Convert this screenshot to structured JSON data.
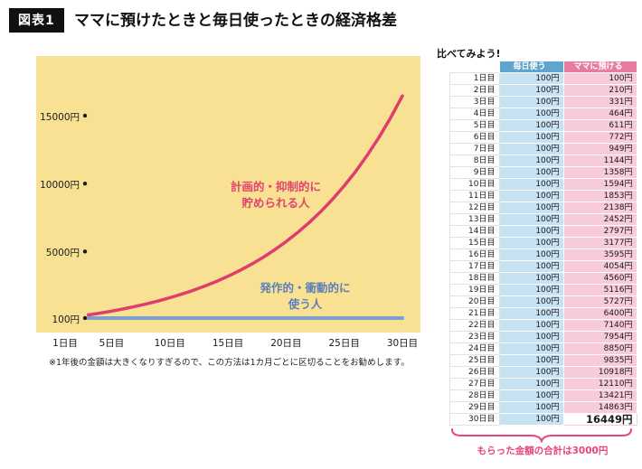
{
  "figure_label": "図表1",
  "title": "ママに預けたときと毎日使ったときの経済格差",
  "note": "※1年後の金額は大きくなりすぎるので、この方法は1カ月ごとに区切ることをお勧めします。",
  "colors": {
    "plot_bg": "#F9E194",
    "saver_line": "#DF3E6C",
    "spender_line": "#7C9FCB",
    "header_blue": "#5FA5CE",
    "header_pink": "#E87C9F",
    "cell_blue": "#C7E3F3",
    "cell_pink": "#F7CBDA",
    "footer_pink": "#E8457A",
    "tick_dot": "#1a1a1a"
  },
  "chart_data": {
    "type": "line",
    "title": "ママに預けたときと毎日使ったときの経済格差",
    "x": [
      1,
      2,
      3,
      4,
      5,
      6,
      7,
      8,
      9,
      10,
      11,
      12,
      13,
      14,
      15,
      16,
      17,
      18,
      19,
      20,
      21,
      22,
      23,
      24,
      25,
      26,
      27,
      28,
      29,
      30
    ],
    "series": [
      {
        "name": "発作的・衝動的に使う人",
        "color": "#7C9FCB",
        "values": [
          100,
          100,
          100,
          100,
          100,
          100,
          100,
          100,
          100,
          100,
          100,
          100,
          100,
          100,
          100,
          100,
          100,
          100,
          100,
          100,
          100,
          100,
          100,
          100,
          100,
          100,
          100,
          100,
          100,
          100
        ]
      },
      {
        "name": "計画的・抑制的に貯められる人",
        "color": "#DF3E6C",
        "values": [
          100,
          210,
          331,
          464,
          611,
          772,
          949,
          1144,
          1358,
          1594,
          1853,
          2138,
          2452,
          2797,
          3177,
          3595,
          4054,
          4560,
          5116,
          5727,
          6400,
          7140,
          7954,
          8850,
          9835,
          10918,
          12110,
          13421,
          14863,
          16449
        ]
      }
    ],
    "yticks": [
      {
        "value": 15000,
        "label": "15000円"
      },
      {
        "value": 10000,
        "label": "10000円"
      },
      {
        "value": 5000,
        "label": "5000円"
      },
      {
        "value": 100,
        "label": "100円"
      }
    ],
    "xticks": [
      {
        "day": 1,
        "label": "1日目"
      },
      {
        "day": 5,
        "label": "5日目"
      },
      {
        "day": 10,
        "label": "10日目"
      },
      {
        "day": 15,
        "label": "15日目"
      },
      {
        "day": 20,
        "label": "20日目"
      },
      {
        "day": 25,
        "label": "25日目"
      },
      {
        "day": 30,
        "label": "30日目"
      }
    ],
    "ylim": [
      0,
      17000
    ],
    "grid": false,
    "legend_position": "inline-annotations",
    "annotation_saver": "計画的・抑制的に\n貯められる人",
    "annotation_spender": "発作的・衝動的に\n使う人"
  },
  "table": {
    "title": "比べてみよう!",
    "columns": [
      "毎日使う",
      "ママに預ける"
    ],
    "days": [
      "1日目",
      "2日目",
      "3日目",
      "4日目",
      "5日目",
      "6日目",
      "7日目",
      "8日目",
      "9日目",
      "10日目",
      "11日目",
      "12日目",
      "13日目",
      "14日目",
      "15日目",
      "16日目",
      "17日目",
      "18日目",
      "19日目",
      "20日目",
      "21日目",
      "22日目",
      "23日目",
      "24日目",
      "25日目",
      "26日目",
      "27日目",
      "28日目",
      "29日目",
      "30日目"
    ],
    "daily_value": "100円",
    "mama_values": [
      "100円",
      "210円",
      "331円",
      "464円",
      "611円",
      "772円",
      "949円",
      "1144円",
      "1358円",
      "1594円",
      "1853円",
      "2138円",
      "2452円",
      "2797円",
      "3177円",
      "3595円",
      "4054円",
      "4560円",
      "5116円",
      "5727円",
      "6400円",
      "7140円",
      "7954円",
      "8850円",
      "9835円",
      "10918円",
      "12110円",
      "13421円",
      "14863円",
      "16449円"
    ],
    "footer": "もらった金額の合計は3000円"
  }
}
